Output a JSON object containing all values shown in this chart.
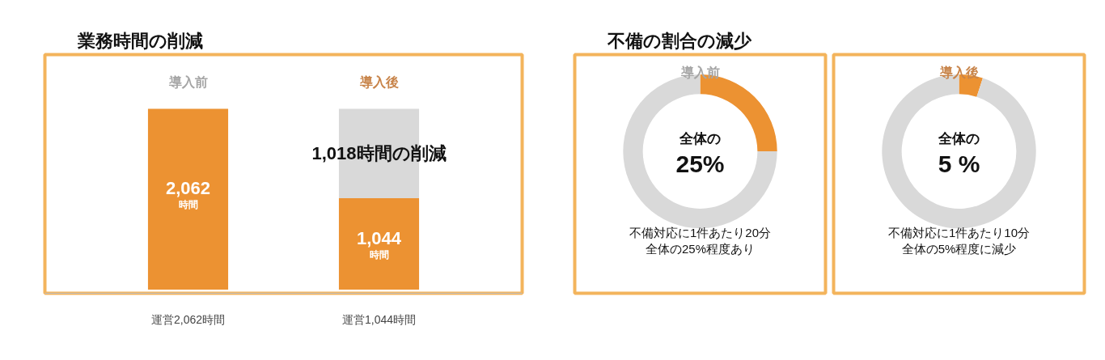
{
  "chart_data": [
    {
      "type": "bar",
      "title": "業務時間の削減",
      "categories": [
        "運営2,062時間",
        "運営1,044時間"
      ],
      "stacked": true,
      "series": [
        {
          "color": "#ec9232",
          "values": [
            2062,
            1044
          ],
          "value_labels": [
            "2,062",
            "1,044"
          ]
        },
        {
          "color": "#d9d9d9",
          "values": [
            null,
            1018
          ],
          "value_labels": [
            null,
            "1,018時間の削減"
          ]
        }
      ],
      "annotations": [
        "導入前",
        "導入後",
        "時間",
        "時間"
      ]
    },
    {
      "type": "donut",
      "title": "不備の割合の減少",
      "subtitle": "導入前",
      "categories": [
        null,
        null
      ],
      "values": [
        25,
        75
      ],
      "colors": [
        "#ec9232",
        "#d9d9d9"
      ],
      "annotations": [
        "全体の",
        "25%",
        "不備対応に1件あたり20分",
        "全体の25%程度あり"
      ]
    },
    {
      "type": "donut",
      "subtitle": "導入後",
      "categories": [
        null,
        null
      ],
      "values": [
        5,
        95
      ],
      "colors": [
        "#ec9232",
        "#d9d9d9"
      ],
      "annotations": [
        "全体の",
        "5 %",
        "不備対応に1件あたり10分",
        "全体の5%程度に減少"
      ]
    }
  ]
}
